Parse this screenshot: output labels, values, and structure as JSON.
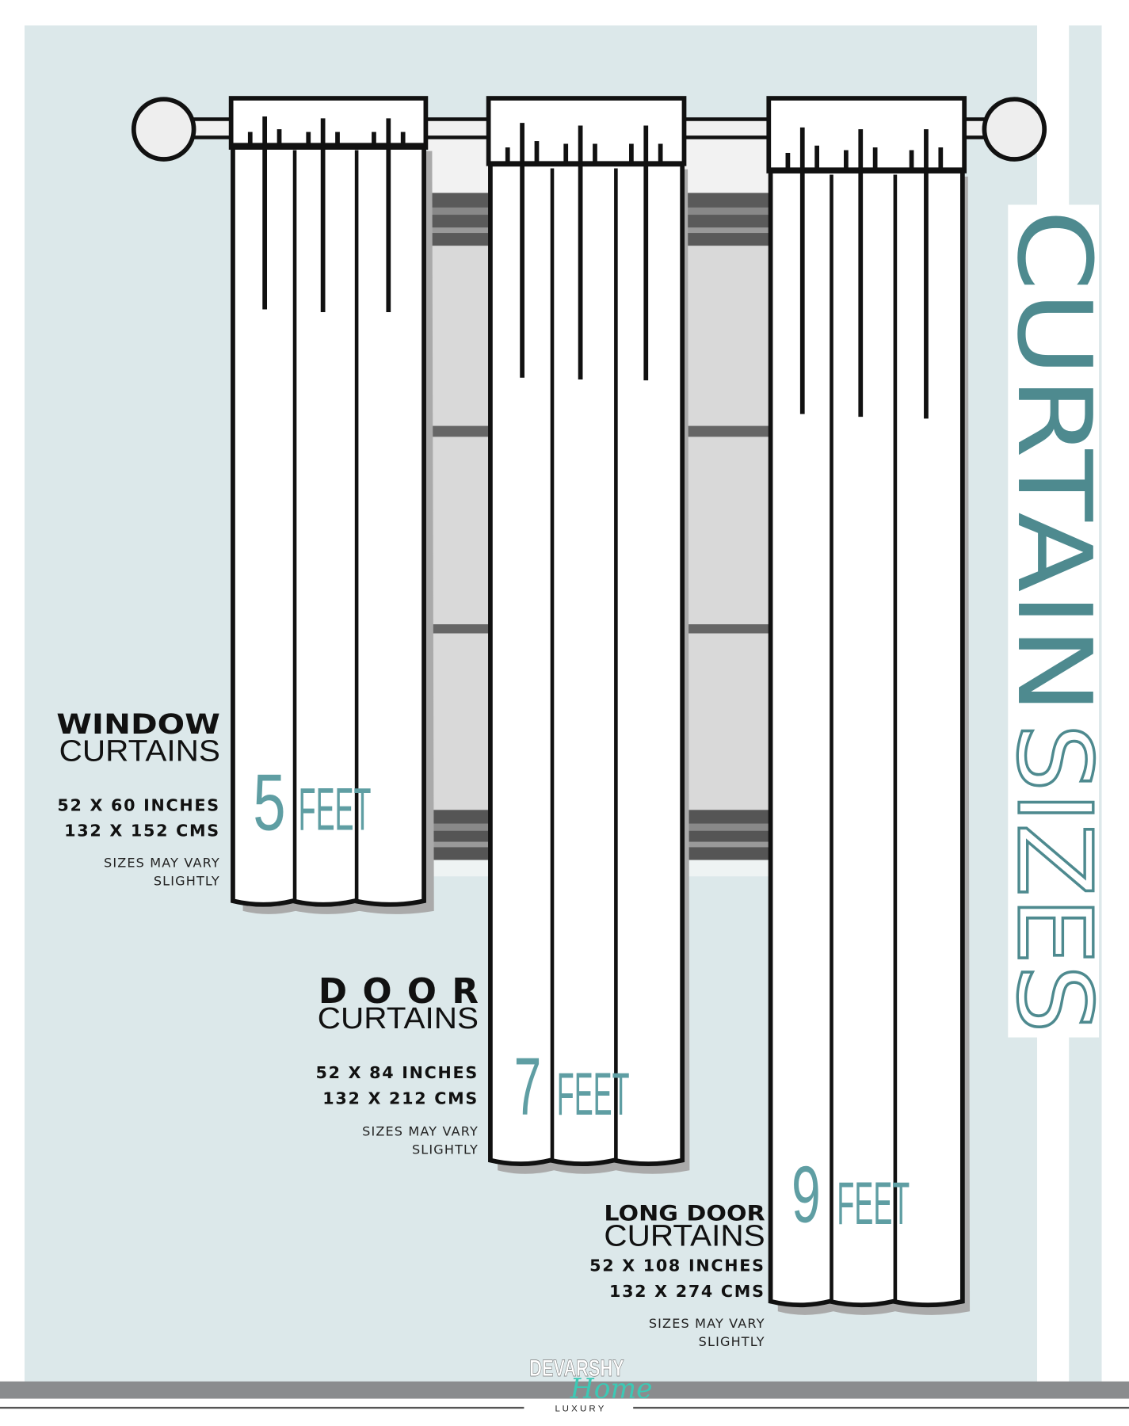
{
  "title": {
    "part1": "CURTAIN",
    "part2": "SIZES"
  },
  "colors": {
    "background": "#dce8ea",
    "accent": "#4e8a8f",
    "feet": "#5f9ea3",
    "footer_band": "#8a8c8e",
    "logo_script": "#3cc9b5"
  },
  "curtains": [
    {
      "name_line1": "WINDOW",
      "name_line2": "CURTAINS",
      "inches": "52 X 60 INCHES",
      "cms": "132 X 152 CMS",
      "note1": "SIZES MAY VARY",
      "note2": "SLIGHTLY",
      "feet_number": "5",
      "feet_unit": "FEET"
    },
    {
      "name_line1": "DOOR",
      "name_line2": "CURTAINS",
      "inches": "52 X 84 INCHES",
      "cms": "132 X 212 CMS",
      "note1": "SIZES MAY VARY",
      "note2": "SLIGHTLY",
      "feet_number": "7",
      "feet_unit": "FEET"
    },
    {
      "name_line1": "LONG DOOR",
      "name_line2": "CURTAINS",
      "inches": "52 X 108 INCHES",
      "cms": "132 X 274 CMS",
      "note1": "SIZES MAY VARY",
      "note2": "SLIGHTLY",
      "feet_number": "9",
      "feet_unit": "FEET"
    }
  ],
  "logo": {
    "brand": "DEVARSHY",
    "script": "Home",
    "tagline": "L U X U R Y"
  }
}
